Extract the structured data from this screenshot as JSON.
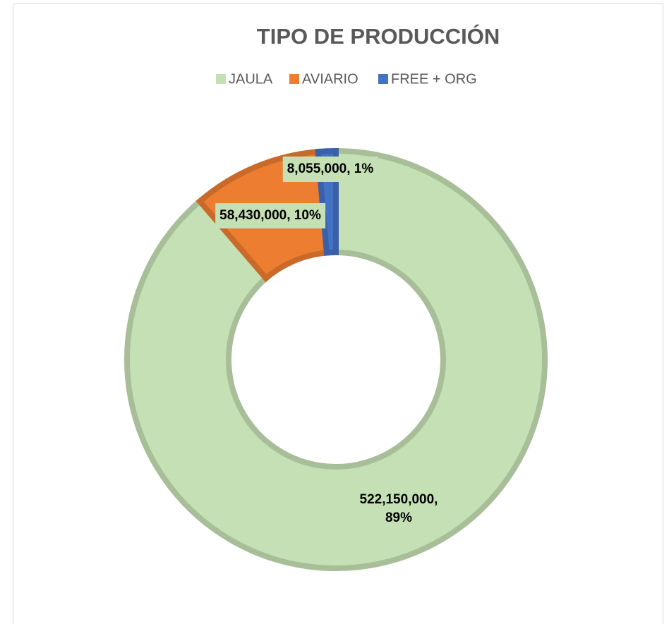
{
  "chart_data": {
    "type": "donut",
    "title": "TIPO DE PRODUCCIÓN",
    "categories": [
      "JAULA",
      "AVIARIO",
      "FREE + ORG"
    ],
    "values": [
      522150000,
      58430000,
      8055000
    ],
    "value_labels": [
      "522,150,000, 89%",
      "58,430,000, 10%",
      "8,055,000, 1%"
    ],
    "colors": [
      "#c5e0b4",
      "#ed7d31",
      "#4472c4"
    ],
    "legend": "top"
  }
}
